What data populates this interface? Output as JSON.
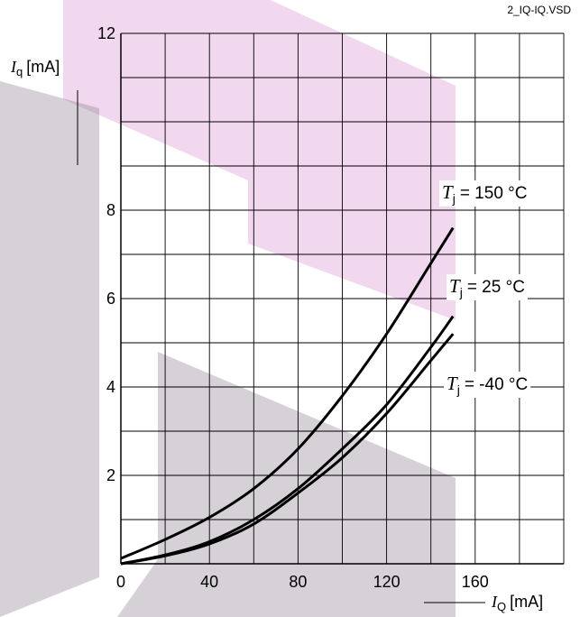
{
  "doc_id": "2_IQ-IQ.VSD",
  "chart_data": {
    "type": "line",
    "title": "",
    "xlabel": {
      "symbol": "I",
      "subscript": "Q",
      "unit": "[mA]"
    },
    "ylabel": {
      "symbol": "I",
      "subscript": "q",
      "unit": "[mA]"
    },
    "xlim": [
      0,
      200
    ],
    "ylim": [
      0,
      12
    ],
    "x_grid_step": 20,
    "y_grid_step": 1,
    "x_ticks": [
      0,
      40,
      80,
      120,
      160
    ],
    "y_ticks": [
      2,
      4,
      6,
      8,
      12
    ],
    "grid": true,
    "legend": "inline-right",
    "series": [
      {
        "label": {
          "symbol": "T",
          "subscript": "j",
          "text": "= 150 °C"
        },
        "x": [
          0,
          20,
          40,
          60,
          80,
          100,
          120,
          140,
          150
        ],
        "y": [
          0.12,
          0.55,
          1.05,
          1.7,
          2.6,
          3.8,
          5.2,
          6.8,
          7.6
        ]
      },
      {
        "label": {
          "symbol": "T",
          "subscript": "j",
          "text": "= 25 °C"
        },
        "x": [
          0,
          20,
          40,
          60,
          80,
          100,
          120,
          140,
          150
        ],
        "y": [
          0.0,
          0.2,
          0.5,
          1.0,
          1.7,
          2.6,
          3.6,
          4.9,
          5.6
        ]
      },
      {
        "label": {
          "symbol": "T",
          "subscript": "j",
          "text": "= -40 °C"
        },
        "x": [
          0,
          20,
          40,
          60,
          80,
          100,
          120,
          140,
          150
        ],
        "y": [
          0.0,
          0.18,
          0.45,
          0.9,
          1.6,
          2.4,
          3.4,
          4.6,
          5.2
        ]
      }
    ],
    "colors": {
      "line": "#000000",
      "grid": "#000000",
      "watermark_pink": "#d68fd0",
      "watermark_gray": "#8a7a8c"
    }
  }
}
